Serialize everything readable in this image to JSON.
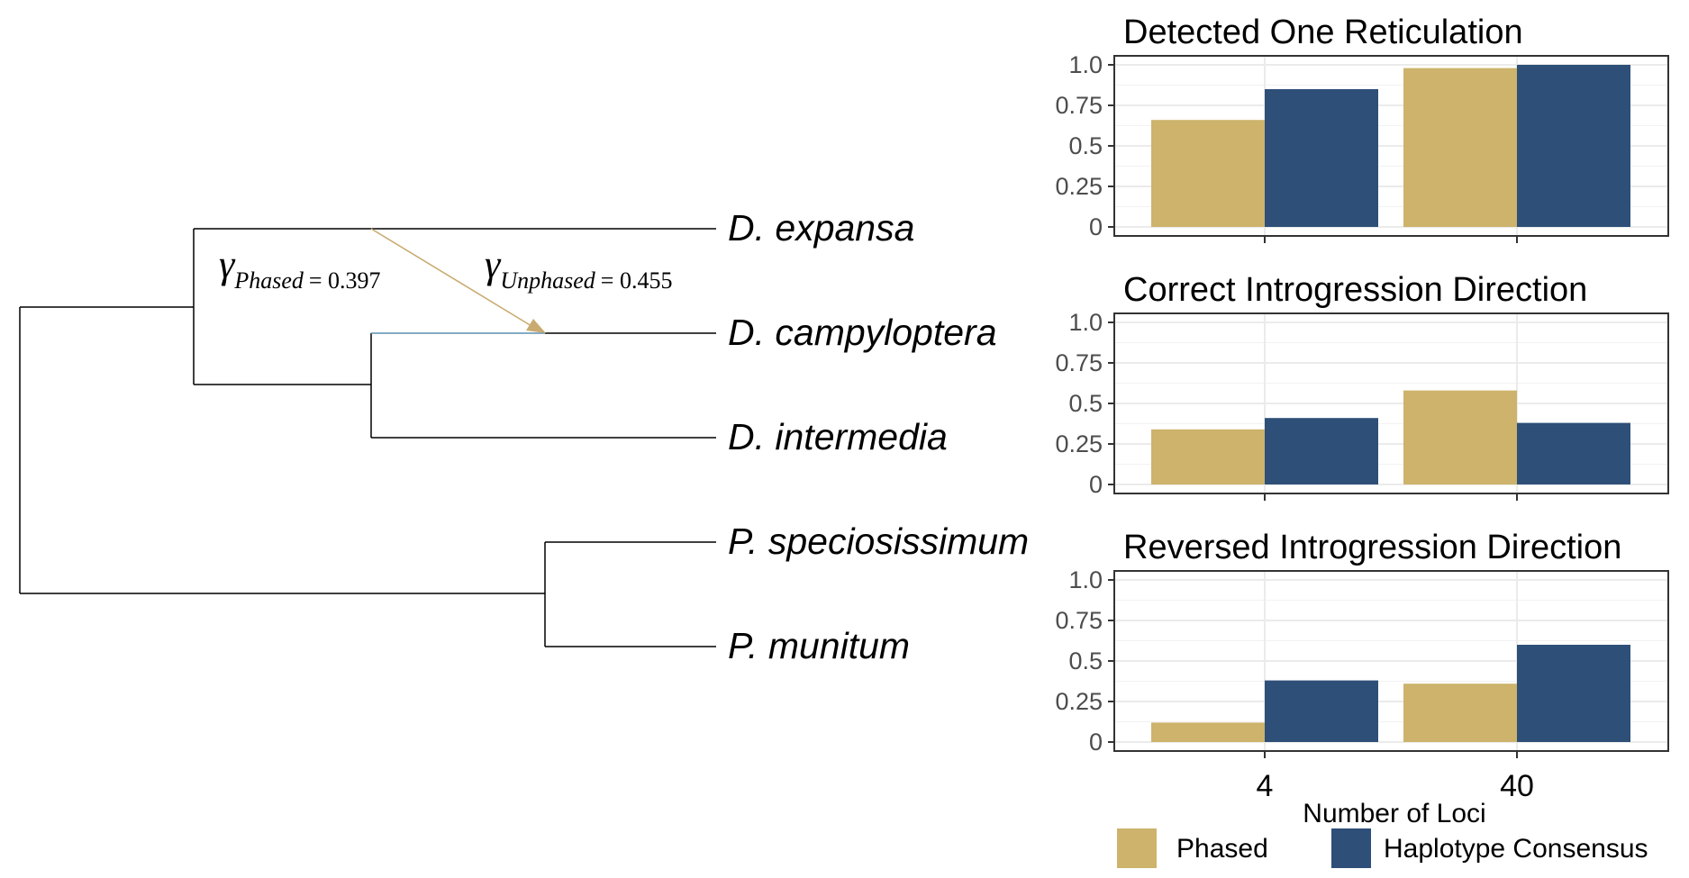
{
  "tree": {
    "taxa": [
      "D. expansa",
      "D. campyloptera",
      "D. intermedia",
      "P. speciosissimum",
      "P. munitum"
    ],
    "gamma_labels": [
      {
        "symbol": "γ",
        "subscript": "Phased",
        "value": "= 0.397"
      },
      {
        "symbol": "γ",
        "subscript": "Unphased",
        "value": "= 0.455"
      }
    ],
    "colors": {
      "branch": "#000000",
      "reticulation_arrow": "#c9ab72",
      "highlight_branch": "#5b8fb0"
    }
  },
  "chart_data": [
    {
      "type": "bar",
      "title": "Detected One Reticulation",
      "categories": [
        "4",
        "40"
      ],
      "series": [
        {
          "name": "Phased",
          "values": [
            0.66,
            0.98
          ]
        },
        {
          "name": "Haplotype Consensus",
          "values": [
            0.85,
            1.0
          ]
        }
      ],
      "ylim": [
        0,
        1.0
      ],
      "yticks": [
        "0",
        "0.25",
        "0.5",
        "0.75",
        "1.0"
      ],
      "grid": true
    },
    {
      "type": "bar",
      "title": "Correct Introgression Direction",
      "categories": [
        "4",
        "40"
      ],
      "series": [
        {
          "name": "Phased",
          "values": [
            0.34,
            0.58
          ]
        },
        {
          "name": "Haplotype Consensus",
          "values": [
            0.41,
            0.38
          ]
        }
      ],
      "ylim": [
        0,
        1.0
      ],
      "yticks": [
        "0",
        "0.25",
        "0.5",
        "0.75",
        "1.0"
      ],
      "grid": true
    },
    {
      "type": "bar",
      "title": "Reversed Introgression Direction",
      "categories": [
        "4",
        "40"
      ],
      "series": [
        {
          "name": "Phased",
          "values": [
            0.12,
            0.36
          ]
        },
        {
          "name": "Haplotype Consensus",
          "values": [
            0.38,
            0.6
          ]
        }
      ],
      "ylim": [
        0,
        1.0
      ],
      "yticks": [
        "0",
        "0.25",
        "0.5",
        "0.75",
        "1.0"
      ],
      "grid": true
    }
  ],
  "xlabel": "Number of Loci",
  "legend": {
    "placement": "bottom",
    "entries": [
      {
        "label": "Phased",
        "color": "#cdb36b"
      },
      {
        "label": "Haplotype Consensus",
        "color": "#2e4f78"
      }
    ]
  }
}
